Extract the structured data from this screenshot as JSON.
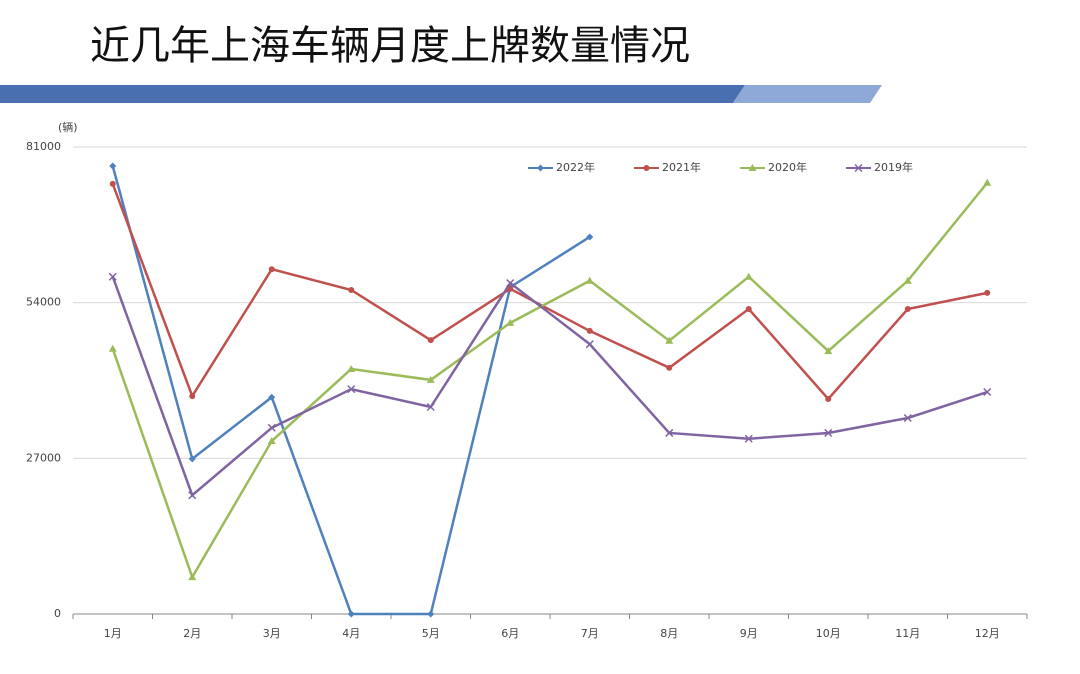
{
  "chart_data": {
    "type": "line",
    "title": "近几年上海车辆月度上牌数量情况",
    "y_label": "(辆)",
    "categories": [
      "1月",
      "2月",
      "3月",
      "4月",
      "5月",
      "6月",
      "7月",
      "8月",
      "9月",
      "10月",
      "11月",
      "12月"
    ],
    "series": [
      {
        "name": "2022年",
        "color": "#4f81bd",
        "marker": "diamond",
        "values": [
          77700,
          26900,
          37600,
          0,
          0,
          56700,
          65400,
          null,
          null,
          null,
          null,
          null
        ]
      },
      {
        "name": "2021年",
        "color": "#c0504d",
        "marker": "circle",
        "values": [
          74600,
          37800,
          59800,
          56200,
          47500,
          56400,
          49100,
          42700,
          52900,
          37300,
          52900,
          55700
        ]
      },
      {
        "name": "2020年",
        "color": "#9bbb59",
        "marker": "triangle",
        "values": [
          46000,
          6400,
          30000,
          42500,
          40600,
          50500,
          57800,
          47400,
          58500,
          45600,
          57800,
          74800
        ]
      },
      {
        "name": "2019年",
        "color": "#8064a2",
        "marker": "x",
        "values": [
          58500,
          20600,
          32300,
          39000,
          35900,
          57400,
          46800,
          31400,
          30400,
          31400,
          34000,
          38500
        ]
      }
    ],
    "ylim": [
      0,
      81000
    ],
    "yticks": [
      0,
      27000,
      54000,
      81000
    ],
    "grid": true,
    "legend": "top-right"
  }
}
